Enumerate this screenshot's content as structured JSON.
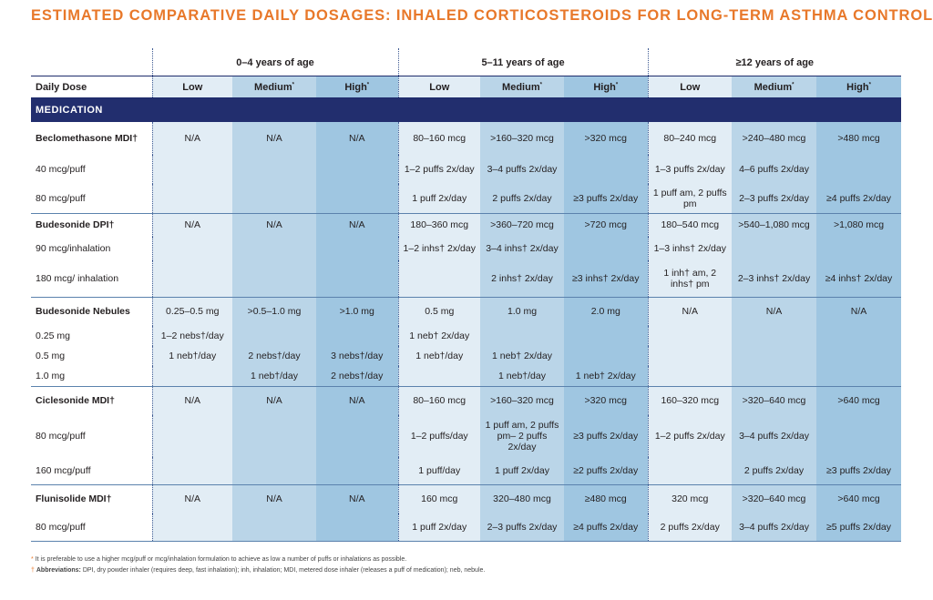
{
  "title": "ESTIMATED COMPARATIVE DAILY DOSAGES:  INHALED CORTICOSTEROIDS FOR LONG-TERM ASTHMA CONTROL",
  "age_groups": [
    "0–4 years of age",
    "5–11 years of age",
    "≥12 years of age"
  ],
  "daily_dose_label": "Daily Dose",
  "levels": {
    "low": "Low",
    "medium": "Medium",
    "high": "High"
  },
  "level_mark": "*",
  "medication_header": "MEDICATION",
  "rows": [
    {
      "label": "Beclomethasone MDI†",
      "c": [
        "N/A",
        "N/A",
        "N/A",
        "80–160 mcg",
        ">160–320 mcg",
        ">320 mcg",
        "80–240 mcg",
        ">240–480 mcg",
        ">480 mcg"
      ]
    },
    {
      "label": "40 mcg/puff",
      "c": [
        "",
        "",
        "",
        "1–2 puffs 2x/day",
        "3–4 puffs 2x/day",
        "",
        "1–3 puffs 2x/day",
        "4–6 puffs 2x/day",
        ""
      ]
    },
    {
      "label": "80 mcg/puff",
      "c": [
        "",
        "",
        "",
        "1 puff 2x/day",
        "2 puffs 2x/day",
        "≥3 puffs 2x/day",
        "1 puff am, 2 puffs pm",
        "2–3 puffs 2x/day",
        "≥4 puffs 2x/day"
      ]
    },
    {
      "label": "Budesonide DPI†",
      "c": [
        "N/A",
        "N/A",
        "N/A",
        "180–360 mcg",
        ">360–720 mcg",
        ">720 mcg",
        "180–540 mcg",
        ">540–1,080 mcg",
        ">1,080 mcg"
      ]
    },
    {
      "label": "90 mcg/inhalation",
      "c": [
        "",
        "",
        "",
        "1–2 inhs† 2x/day",
        "3–4 inhs† 2x/day",
        "",
        "1–3 inhs† 2x/day",
        "",
        ""
      ]
    },
    {
      "label": "180 mcg/ inhalation",
      "c": [
        "",
        "",
        "",
        "",
        "2 inhs† 2x/day",
        "≥3 inhs† 2x/day",
        "1 inh† am, 2 inhs† pm",
        "2–3 inhs† 2x/day",
        "≥4 inhs† 2x/day"
      ]
    },
    {
      "label": "Budesonide Nebules",
      "c": [
        "0.25–0.5 mg",
        ">0.5–1.0 mg",
        ">1.0 mg",
        "0.5 mg",
        "1.0 mg",
        "2.0 mg",
        "N/A",
        "N/A",
        "N/A"
      ]
    },
    {
      "label": "0.25 mg",
      "c": [
        "1–2 nebs†/day",
        "",
        "",
        "1 neb† 2x/day",
        "",
        "",
        "",
        "",
        ""
      ]
    },
    {
      "label": "0.5 mg",
      "c": [
        "1 neb†/day",
        "2 nebs†/day",
        "3 nebs†/day",
        "1 neb†/day",
        "1 neb† 2x/day",
        "",
        "",
        "",
        ""
      ]
    },
    {
      "label": "1.0 mg",
      "c": [
        "",
        "1 neb†/day",
        "2 nebs†/day",
        "",
        "1 neb†/day",
        "1 neb† 2x/day",
        "",
        "",
        ""
      ]
    },
    {
      "label": "Ciclesonide MDI†",
      "c": [
        "N/A",
        "N/A",
        "N/A",
        "80–160 mcg",
        ">160–320 mcg",
        ">320 mcg",
        "160–320 mcg",
        ">320–640 mcg",
        ">640 mcg"
      ]
    },
    {
      "label": "80 mcg/puff",
      "c": [
        "",
        "",
        "",
        "1–2 puffs/day",
        "1 puff am, 2 puffs pm– 2 puffs 2x/day",
        "≥3 puffs 2x/day",
        "1–2 puffs 2x/day",
        "3–4 puffs 2x/day",
        ""
      ]
    },
    {
      "label": "160 mcg/puff",
      "c": [
        "",
        "",
        "",
        "1 puff/day",
        "1 puff 2x/day",
        "≥2 puffs 2x/day",
        "",
        "2 puffs 2x/day",
        "≥3 puffs 2x/day"
      ]
    },
    {
      "label": "Flunisolide MDI†",
      "c": [
        "N/A",
        "N/A",
        "N/A",
        "160 mcg",
        "320–480 mcg",
        "≥480 mcg",
        "320 mcg",
        ">320–640 mcg",
        ">640 mcg"
      ]
    },
    {
      "label": "80 mcg/puff",
      "c": [
        "",
        "",
        "",
        "1 puff 2x/day",
        "2–3 puffs 2x/day",
        "≥4 puffs 2x/day",
        "2 puffs 2x/day",
        "3–4 puffs 2x/day",
        "≥5 puffs 2x/day"
      ]
    }
  ],
  "footnotes": {
    "star_mark": "*",
    "star_text": "It is preferable to use a higher mcg/puff or mcg/inhalation formulation to achieve as low a number of puffs or inhalations as possible.",
    "dagger_mark": "†",
    "abbr_label": "Abbreviations:",
    "abbr_text": "DPI, dry powder inhaler (requires deep, fast inhalation); inh, inhalation; MDI, metered dose inhaler (releases a puff of medication); neb, nebule."
  },
  "colors": {
    "title": "#e8782a",
    "header_band": "#222e6e",
    "low": "#e2edf5",
    "medium": "#bad5e8",
    "high": "#9fc6e1"
  }
}
